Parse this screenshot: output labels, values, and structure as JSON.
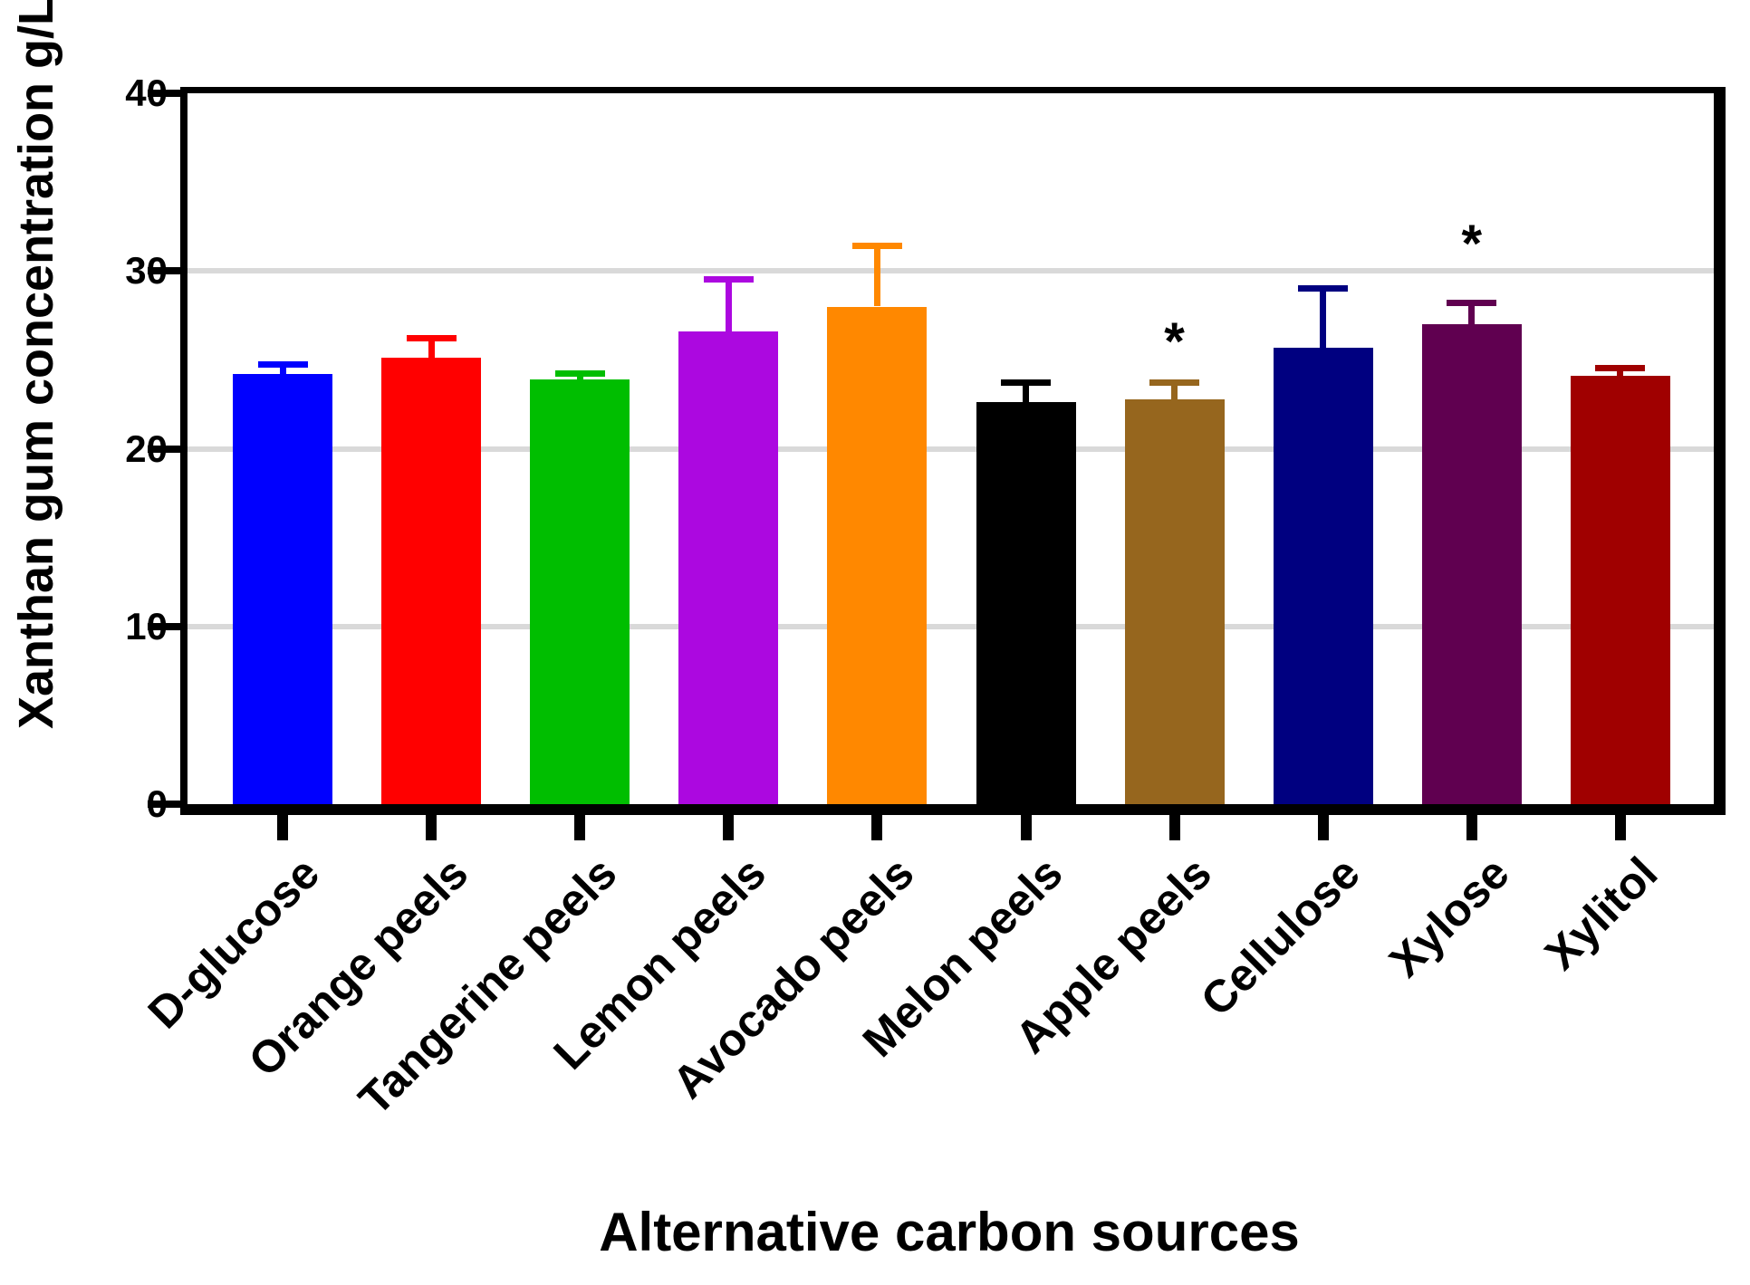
{
  "figure": {
    "y_axis_title": "Xanthan gum concentration g/L",
    "x_axis_title": "Alternative carbon sources",
    "significance_symbol": "*"
  },
  "chart_data": {
    "type": "bar",
    "title": "",
    "xlabel": "Alternative carbon sources",
    "ylabel": "Xanthan gum concentration g/L",
    "ylim": [
      0,
      40
    ],
    "yticks": [
      0,
      10,
      20,
      30,
      40
    ],
    "ytick_labels": [
      "0",
      "10",
      "20",
      "30",
      "40"
    ],
    "grid": "horizontal gray gridlines at y=10,20,30",
    "legend": "none",
    "error_bars": "upper SD whiskers with caps",
    "categories": [
      "D-glucose",
      "Orange peels",
      "Tangerine peels",
      "Lemon peels",
      "Avocado peels",
      "Melon peels",
      "Apple peels",
      "Cellulose",
      "Xylose",
      "Xylitol"
    ],
    "values": [
      24.2,
      25.1,
      23.9,
      26.6,
      28.0,
      22.6,
      22.8,
      25.7,
      27.0,
      24.1
    ],
    "errors": [
      0.7,
      1.3,
      0.5,
      3.1,
      3.6,
      1.3,
      1.1,
      3.5,
      1.4,
      0.6
    ],
    "colors": [
      "#0000FF",
      "#FF0000",
      "#00BE00",
      "#AC08E0",
      "#FF8800",
      "#000000",
      "#96661E",
      "#000080",
      "#600050",
      "#A00000"
    ],
    "significance": [
      "",
      "",
      "",
      "",
      "",
      "",
      "*",
      "",
      "*",
      ""
    ],
    "sig_y": [
      null,
      null,
      null,
      null,
      null,
      null,
      26.0,
      null,
      31.5,
      null
    ],
    "gridline_color": "#D9D9D9",
    "frame_color": "#000000"
  }
}
